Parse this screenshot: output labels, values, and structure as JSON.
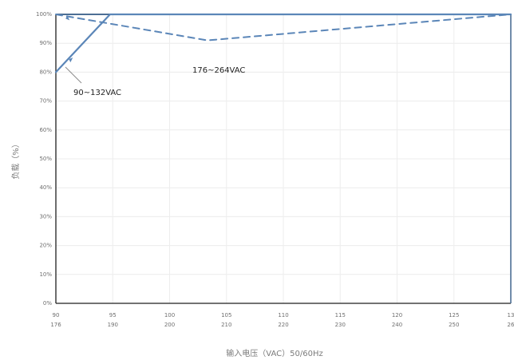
{
  "chart_data": {
    "type": "line",
    "title": "",
    "xlabel": "输入电压（VAC）50/60Hz",
    "ylabel": "负载（%）",
    "ylim": [
      0,
      100
    ],
    "xlim": [
      90,
      132
    ],
    "x_ticks_primary": [
      "90",
      "95",
      "100",
      "105",
      "110",
      "115",
      "120",
      "125",
      "13"
    ],
    "x_ticks_secondary": [
      "176",
      "190",
      "200",
      "210",
      "220",
      "230",
      "240",
      "250",
      "26"
    ],
    "y_ticks": [
      "0%",
      "10%",
      "20%",
      "30%",
      "40%",
      "50%",
      "60%",
      "70%",
      "80%",
      "90%",
      "100%"
    ],
    "grid": true,
    "series": [
      {
        "name": "90~132VAC",
        "style": "solid",
        "color": "#5b86b8",
        "x": [
          90,
          95,
          132
        ],
        "y": [
          80,
          100,
          100
        ]
      },
      {
        "name": "176~264VAC",
        "style": "dashed",
        "color": "#5b86b8",
        "x": [
          90,
          104,
          132
        ],
        "y": [
          100,
          91,
          100
        ]
      }
    ],
    "legend": "none"
  }
}
